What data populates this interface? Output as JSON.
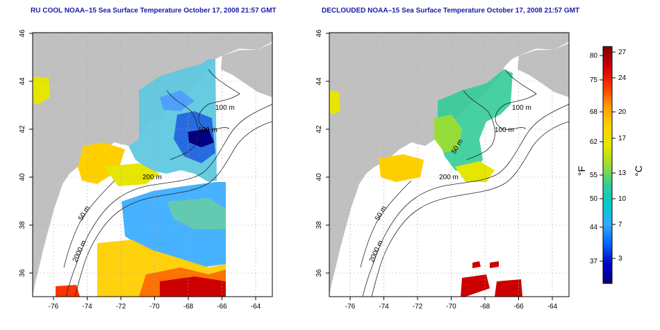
{
  "panels": [
    {
      "id": "left",
      "title": "RU COOL NOAA–15 Sea Surface Temperature October 17, 2008 21:57 GMT",
      "contour_labels": [
        "100 m",
        "100 m",
        "200 m",
        "50 m",
        "2000 m"
      ]
    },
    {
      "id": "right",
      "title": "DECLOUDED NOAA–15 Sea Surface Temperature October 17, 2008 21:57 GMT",
      "contour_labels": [
        "100 m",
        "100 m",
        "50 m",
        "200 m",
        "50 m",
        "2000 m"
      ]
    }
  ],
  "axes": {
    "x_ticks": [
      "-76",
      "-74",
      "-72",
      "-70",
      "-68",
      "-66",
      "-64"
    ],
    "y_ticks": [
      "36",
      "38",
      "40",
      "42",
      "44",
      "46"
    ]
  },
  "colorbar": {
    "fahrenheit_ticks": [
      "80",
      "75",
      "68",
      "62",
      "55",
      "50",
      "44",
      "37"
    ],
    "celsius_ticks": [
      "27",
      "24",
      "20",
      "17",
      "13",
      "10",
      "7",
      "3"
    ],
    "fahrenheit_unit": "°F",
    "celsius_unit": "°C",
    "colors": [
      "#800000",
      "#cc0000",
      "#ff3300",
      "#ff9900",
      "#ffd000",
      "#e6e600",
      "#99dd33",
      "#33cc99",
      "#00cccc",
      "#33aaff",
      "#0066ff",
      "#0000cc",
      "#000080"
    ]
  },
  "colors": {
    "land": "#c0c0c0",
    "ocean": "#ffffff",
    "title": "#1a1aa8"
  }
}
